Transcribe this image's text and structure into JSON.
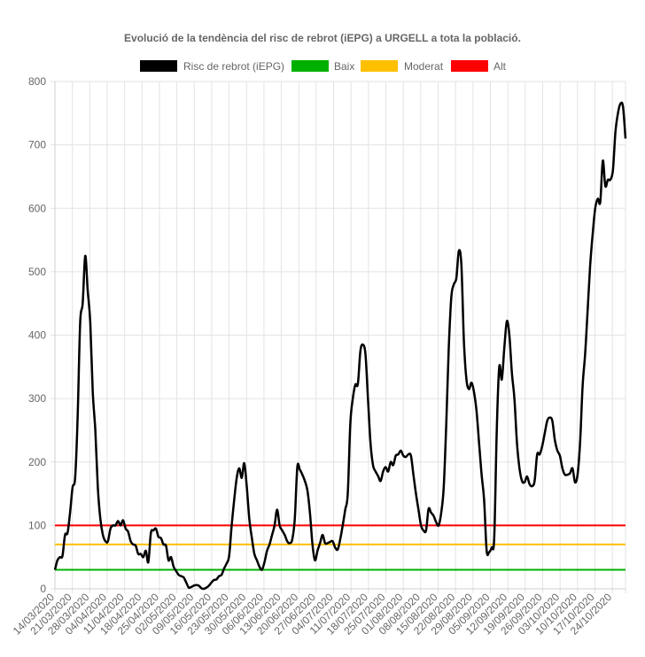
{
  "chart_data": {
    "type": "line",
    "title": "Evolució de la tendència del risc de rebrot (iEPG) a URGELL a tota la població.",
    "xlabel": "",
    "ylabel": "",
    "ylim": [
      0,
      800
    ],
    "yticks": [
      0,
      100,
      200,
      300,
      400,
      500,
      600,
      700,
      800
    ],
    "x_start": "14/03/2020",
    "x_end": "27/10/2020",
    "xtick_labels": [
      "14/03/2020",
      "21/03/2020",
      "28/03/2020",
      "04/04/2020",
      "11/04/2020",
      "18/04/2020",
      "25/04/2020",
      "02/05/2020",
      "09/05/2020",
      "16/05/2020",
      "23/05/2020",
      "30/05/2020",
      "06/06/2020",
      "13/06/2020",
      "20/06/2020",
      "27/06/2020",
      "04/07/2020",
      "11/07/2020",
      "18/07/2020",
      "25/07/2020",
      "01/08/2020",
      "08/08/2020",
      "15/08/2020",
      "22/08/2020",
      "29/08/2020",
      "05/09/2020",
      "12/09/2020",
      "19/09/2020",
      "26/09/2020",
      "03/10/2020",
      "10/10/2020",
      "17/10/2020",
      "24/10/2020"
    ],
    "grid": true,
    "legend_position": "top",
    "series": [
      {
        "name": "Risc de rebrot (iEPG)",
        "color": "#000000",
        "values": [
          30,
          45,
          50,
          52,
          85,
          88,
          120,
          160,
          175,
          270,
          420,
          450,
          525,
          470,
          420,
          310,
          250,
          160,
          110,
          85,
          75,
          75,
          95,
          100,
          100,
          107,
          100,
          108,
          95,
          90,
          75,
          70,
          68,
          55,
          55,
          50,
          60,
          42,
          88,
          92,
          95,
          82,
          80,
          70,
          68,
          45,
          50,
          35,
          28,
          22,
          20,
          18,
          10,
          2,
          3,
          5,
          6,
          5,
          1,
          0,
          2,
          5,
          10,
          14,
          15,
          20,
          22,
          32,
          40,
          52,
          100,
          140,
          175,
          190,
          175,
          198,
          160,
          110,
          80,
          55,
          45,
          35,
          30,
          42,
          60,
          70,
          85,
          100,
          125,
          100,
          92,
          85,
          75,
          72,
          78,
          110,
          192,
          188,
          180,
          170,
          155,
          120,
          70,
          45,
          60,
          72,
          85,
          72,
          72,
          74,
          75,
          65,
          62,
          78,
          100,
          125,
          150,
          260,
          300,
          322,
          323,
          375,
          385,
          370,
          300,
          230,
          195,
          185,
          178,
          170,
          185,
          192,
          185,
          200,
          195,
          210,
          212,
          218,
          210,
          208,
          212,
          210,
          180,
          150,
          125,
          100,
          92,
          92,
          126,
          120,
          115,
          105,
          100,
          120,
          160,
          260,
          380,
          460,
          480,
          490,
          533,
          510,
          390,
          330,
          315,
          325,
          310,
          280,
          230,
          180,
          140,
          60,
          58,
          65,
          80,
          250,
          350,
          330,
          380,
          422,
          400,
          340,
          300,
          230,
          190,
          170,
          168,
          177,
          165,
          162,
          170,
          212,
          212,
          225,
          245,
          265,
          270,
          265,
          235,
          218,
          210,
          190,
          180,
          180,
          182,
          190,
          168,
          180,
          230,
          320,
          370,
          440,
          510,
          560,
          600,
          615,
          610,
          675,
          635,
          645,
          645,
          660,
          720,
          750,
          765,
          760,
          710
        ]
      },
      {
        "name": "Baix",
        "color": "#00b000",
        "values": [
          30
        ]
      },
      {
        "name": "Moderat",
        "color": "#ffc000",
        "values": [
          70
        ]
      },
      {
        "name": "Alt",
        "color": "#ff0000",
        "values": [
          100
        ]
      }
    ]
  }
}
